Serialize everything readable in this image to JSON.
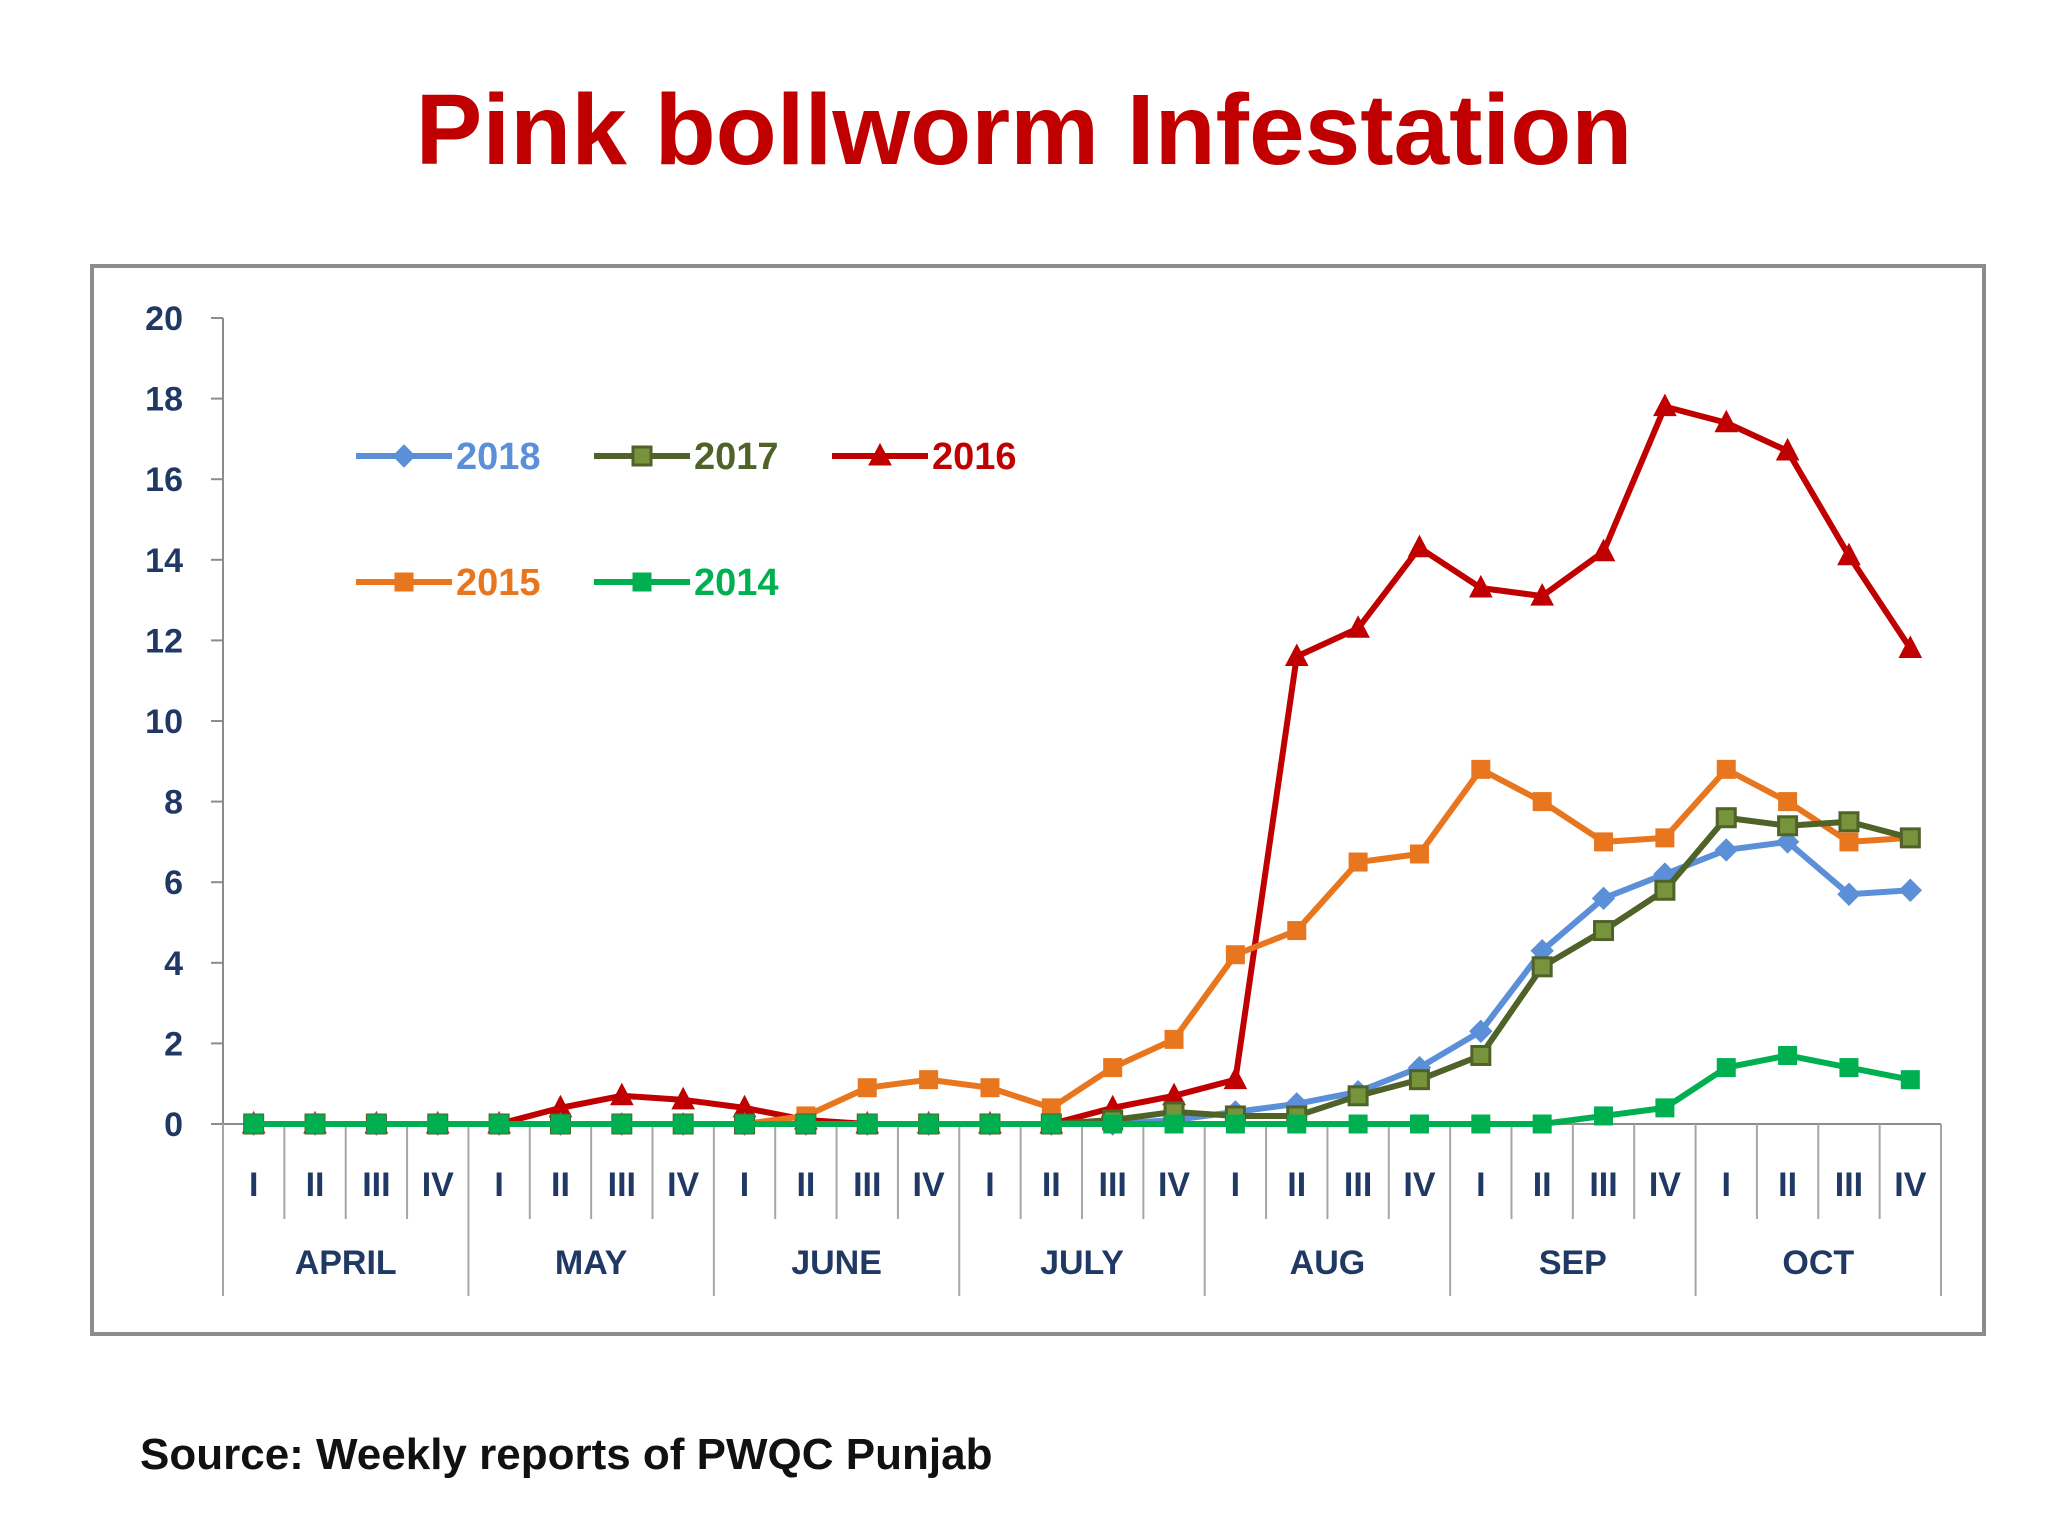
{
  "title": "Pink bollworm Infestation",
  "source": "Source: Weekly reports of PWQC Punjab",
  "chart_data": {
    "type": "line",
    "title": "",
    "xlabel": "",
    "ylabel": "",
    "ylim": [
      0,
      20
    ],
    "yticks": [
      0,
      2,
      4,
      6,
      8,
      10,
      12,
      14,
      16,
      18,
      20
    ],
    "grid": false,
    "legend_position": "top-left",
    "months": [
      "APRIL",
      "MAY",
      "JUNE",
      "JULY",
      "AUG",
      "SEP",
      "OCT"
    ],
    "weeks": [
      "I",
      "II",
      "III",
      "IV"
    ],
    "series": [
      {
        "name": "2018",
        "color": "#5b8fd8",
        "marker": "diamond",
        "values": [
          0,
          0,
          0,
          0,
          0,
          0,
          0,
          0,
          0,
          0,
          0,
          0,
          0,
          0,
          0,
          0.1,
          0.3,
          0.5,
          0.8,
          1.4,
          2.3,
          4.3,
          5.6,
          6.2,
          6.8,
          7.0,
          5.7,
          5.8
        ]
      },
      {
        "name": "2017",
        "color": "#4f6228",
        "marker": "square-open",
        "fill": "#77933c",
        "values": [
          0,
          0,
          0,
          0,
          0,
          0,
          0,
          0,
          0,
          0,
          0,
          0,
          0,
          0,
          0.1,
          0.3,
          0.2,
          0.2,
          0.7,
          1.1,
          1.7,
          3.9,
          4.8,
          5.8,
          7.6,
          7.4,
          7.5,
          7.1
        ]
      },
      {
        "name": "2016",
        "color": "#c00000",
        "marker": "triangle",
        "values": [
          0,
          0,
          0,
          0,
          0,
          0.4,
          0.7,
          0.6,
          0.4,
          0.1,
          0,
          0,
          0,
          0,
          0.4,
          0.7,
          1.1,
          11.6,
          12.3,
          14.3,
          13.3,
          13.1,
          14.2,
          17.8,
          17.4,
          16.7,
          14.1,
          11.8
        ]
      },
      {
        "name": "2015",
        "color": "#e8761e",
        "marker": "square",
        "values": [
          0,
          0,
          0,
          0,
          0,
          0,
          0,
          0,
          0,
          0.2,
          0.9,
          1.1,
          0.9,
          0.4,
          1.4,
          2.1,
          4.2,
          4.8,
          6.5,
          6.7,
          8.8,
          8.0,
          7.0,
          7.1,
          8.8,
          8.0,
          7.0,
          7.1
        ]
      },
      {
        "name": "2014",
        "color": "#00b050",
        "marker": "square",
        "values": [
          0,
          0,
          0,
          0,
          0,
          0,
          0,
          0,
          0,
          0,
          0,
          0,
          0,
          0,
          0,
          0,
          0,
          0,
          0,
          0,
          0,
          0,
          0.2,
          0.4,
          1.4,
          1.7,
          1.4,
          1.1
        ]
      }
    ]
  }
}
